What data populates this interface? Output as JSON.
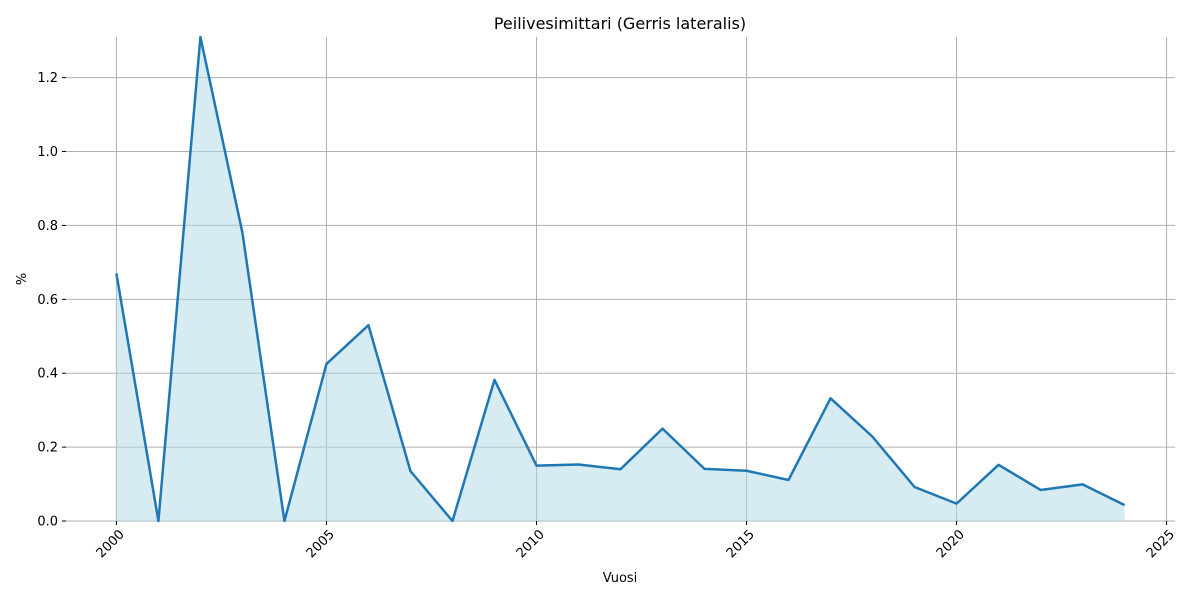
{
  "chart_data": {
    "type": "area",
    "title": "Peilivesimittari (Gerris lateralis)",
    "xlabel": "Vuosi",
    "ylabel": "%",
    "xlim": [
      1998.8,
      2025.2
    ],
    "ylim": [
      0,
      1.31
    ],
    "xticks": [
      2000,
      2005,
      2010,
      2015,
      2020,
      2025
    ],
    "yticks": [
      0.0,
      0.2,
      0.4,
      0.6,
      0.8,
      1.0,
      1.2
    ],
    "xtick_labels": [
      "2000",
      "2005",
      "2010",
      "2015",
      "2020",
      "2025"
    ],
    "ytick_labels": [
      "0.0",
      "0.2",
      "0.4",
      "0.6",
      "0.8",
      "1.0",
      "1.2"
    ],
    "grid": true,
    "line_color": "#1f77b4",
    "fill_color": "#add8e6",
    "x": [
      2000,
      2001,
      2002,
      2003,
      2004,
      2005,
      2006,
      2007,
      2008,
      2009,
      2010,
      2011,
      2012,
      2013,
      2014,
      2015,
      2016,
      2017,
      2018,
      2019,
      2020,
      2021,
      2022,
      2023,
      2024
    ],
    "y": [
      0.67,
      0.0,
      1.31,
      0.78,
      0.0,
      0.425,
      0.53,
      0.135,
      0.0,
      0.382,
      0.15,
      0.153,
      0.14,
      0.25,
      0.141,
      0.136,
      0.111,
      0.332,
      0.228,
      0.092,
      0.047,
      0.152,
      0.084,
      0.099,
      0.043
    ]
  }
}
